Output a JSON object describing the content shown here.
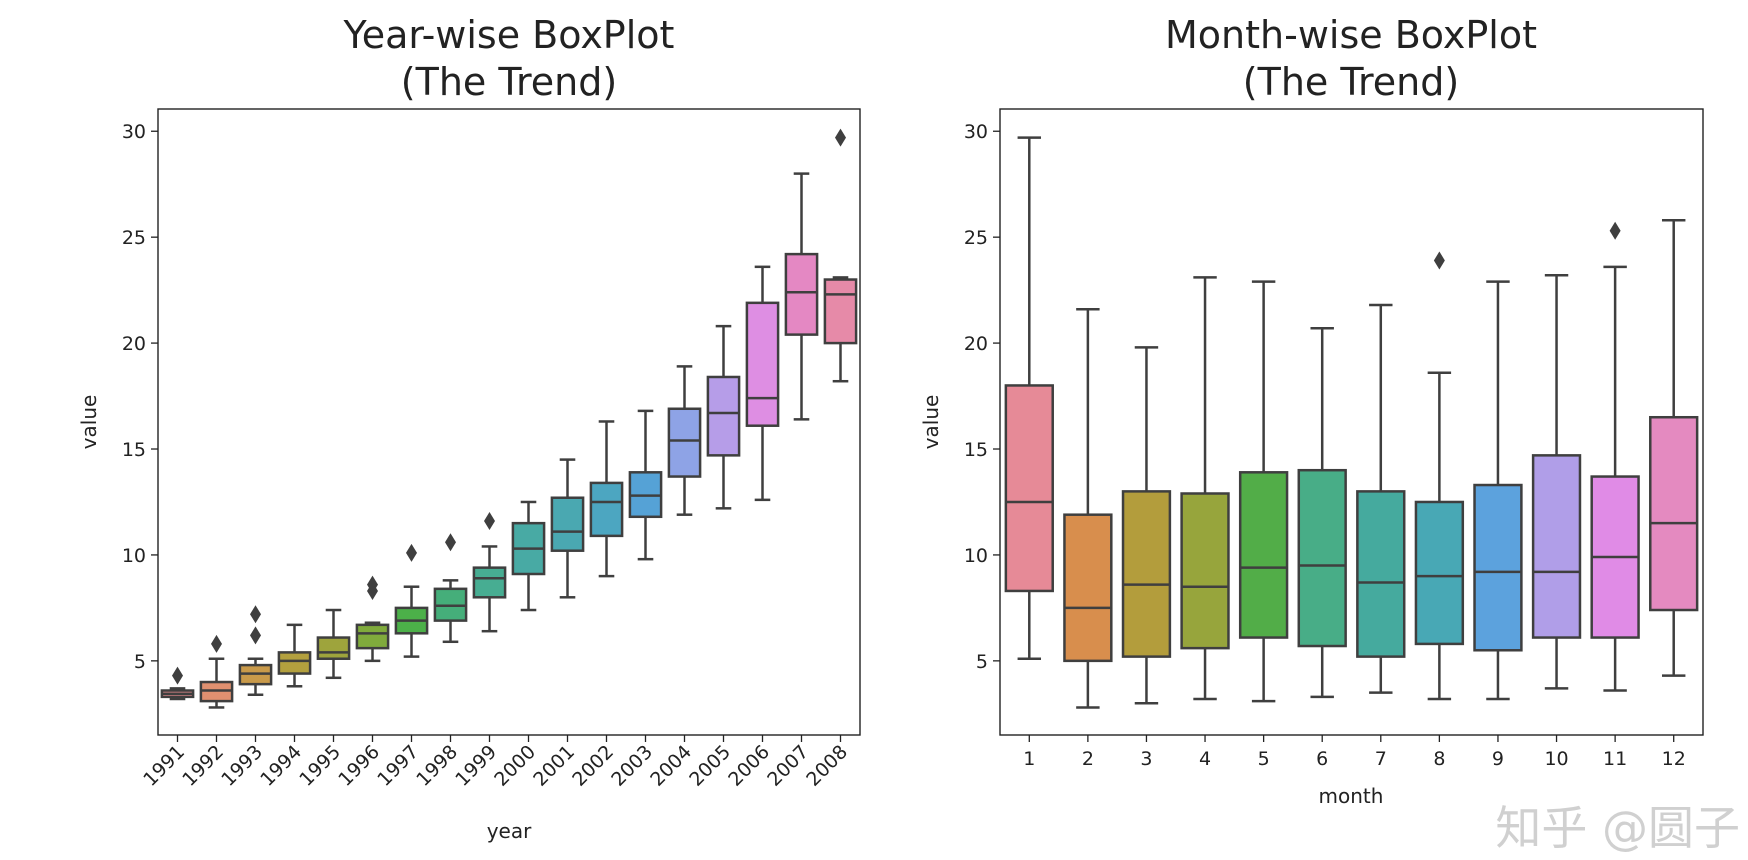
{
  "chart_data": [
    {
      "type": "box",
      "title_line1": "Year-wise BoxPlot",
      "title_line2": "(The Trend)",
      "xlabel": "year",
      "ylabel": "value",
      "ylim": [
        1.5,
        31.05
      ],
      "yticks": [
        5,
        10,
        15,
        20,
        25,
        30
      ],
      "categories": [
        "1991",
        "1992",
        "1993",
        "1994",
        "1995",
        "1996",
        "1997",
        "1998",
        "1999",
        "2000",
        "2001",
        "2002",
        "2003",
        "2004",
        "2005",
        "2006",
        "2007",
        "2008"
      ],
      "boxes": [
        {
          "low": 3.2,
          "q1": 3.3,
          "median": 3.45,
          "q3": 3.6,
          "high": 3.7,
          "outliers": [
            4.3
          ]
        },
        {
          "low": 2.8,
          "q1": 3.1,
          "median": 3.6,
          "q3": 4.0,
          "high": 5.1,
          "outliers": [
            5.8
          ]
        },
        {
          "low": 3.4,
          "q1": 3.9,
          "median": 4.4,
          "q3": 4.8,
          "high": 5.1,
          "outliers": [
            6.2,
            7.2
          ]
        },
        {
          "low": 3.8,
          "q1": 4.4,
          "median": 5.0,
          "q3": 5.4,
          "high": 6.7,
          "outliers": []
        },
        {
          "low": 4.2,
          "q1": 5.1,
          "median": 5.4,
          "q3": 6.1,
          "high": 7.4,
          "outliers": []
        },
        {
          "low": 5.0,
          "q1": 5.6,
          "median": 6.3,
          "q3": 6.7,
          "high": 6.8,
          "outliers": [
            8.3,
            8.6
          ]
        },
        {
          "low": 5.2,
          "q1": 6.3,
          "median": 6.9,
          "q3": 7.5,
          "high": 8.5,
          "outliers": [
            10.1
          ]
        },
        {
          "low": 5.9,
          "q1": 6.9,
          "median": 7.6,
          "q3": 8.4,
          "high": 8.8,
          "outliers": [
            10.6
          ]
        },
        {
          "low": 6.4,
          "q1": 8.0,
          "median": 8.9,
          "q3": 9.4,
          "high": 10.4,
          "outliers": [
            11.6
          ]
        },
        {
          "low": 7.4,
          "q1": 9.1,
          "median": 10.3,
          "q3": 11.5,
          "high": 12.5,
          "outliers": []
        },
        {
          "low": 8.0,
          "q1": 10.2,
          "median": 11.1,
          "q3": 12.7,
          "high": 14.5,
          "outliers": []
        },
        {
          "low": 9.0,
          "q1": 10.9,
          "median": 12.5,
          "q3": 13.4,
          "high": 16.3,
          "outliers": []
        },
        {
          "low": 9.8,
          "q1": 11.8,
          "median": 12.8,
          "q3": 13.9,
          "high": 16.8,
          "outliers": []
        },
        {
          "low": 11.9,
          "q1": 13.7,
          "median": 15.4,
          "q3": 16.9,
          "high": 18.9,
          "outliers": []
        },
        {
          "low": 12.2,
          "q1": 14.7,
          "median": 16.7,
          "q3": 18.4,
          "high": 20.8,
          "outliers": []
        },
        {
          "low": 12.6,
          "q1": 16.1,
          "median": 17.4,
          "q3": 21.9,
          "high": 23.6,
          "outliers": []
        },
        {
          "low": 16.4,
          "q1": 20.4,
          "median": 22.4,
          "q3": 24.2,
          "high": 28.0,
          "outliers": []
        },
        {
          "low": 18.2,
          "q1": 20.0,
          "median": 22.3,
          "q3": 23.0,
          "high": 23.1,
          "outliers": [
            29.7
          ]
        }
      ],
      "colors": [
        "#e58b8e",
        "#e09070",
        "#c99a4a",
        "#b3a03e",
        "#9ea43c",
        "#80ab3c",
        "#4cb049",
        "#45ae7a",
        "#47ad92",
        "#48aaa4",
        "#4aa8b1",
        "#4ca6c1",
        "#55a2d6",
        "#8ea3e6",
        "#b69de8",
        "#de8ee3",
        "#e488c3",
        "#e68aa8"
      ]
    },
    {
      "type": "box",
      "title_line1": "Month-wise BoxPlot",
      "title_line2": "(The Trend)",
      "xlabel": "month",
      "ylabel": "value",
      "ylim": [
        1.5,
        31.05
      ],
      "yticks": [
        5,
        10,
        15,
        20,
        25,
        30
      ],
      "categories": [
        "1",
        "2",
        "3",
        "4",
        "5",
        "6",
        "7",
        "8",
        "9",
        "10",
        "11",
        "12"
      ],
      "boxes": [
        {
          "low": 5.1,
          "q1": 8.3,
          "median": 12.5,
          "q3": 18.0,
          "high": 29.7,
          "outliers": []
        },
        {
          "low": 2.8,
          "q1": 5.0,
          "median": 7.5,
          "q3": 11.9,
          "high": 21.6,
          "outliers": []
        },
        {
          "low": 3.0,
          "q1": 5.2,
          "median": 8.6,
          "q3": 13.0,
          "high": 19.8,
          "outliers": []
        },
        {
          "low": 3.2,
          "q1": 5.6,
          "median": 8.5,
          "q3": 12.9,
          "high": 23.1,
          "outliers": []
        },
        {
          "low": 3.1,
          "q1": 6.1,
          "median": 9.4,
          "q3": 13.9,
          "high": 22.9,
          "outliers": []
        },
        {
          "low": 3.3,
          "q1": 5.7,
          "median": 9.5,
          "q3": 14.0,
          "high": 20.7,
          "outliers": []
        },
        {
          "low": 3.5,
          "q1": 5.2,
          "median": 8.7,
          "q3": 13.0,
          "high": 21.8,
          "outliers": []
        },
        {
          "low": 3.2,
          "q1": 5.8,
          "median": 9.0,
          "q3": 12.5,
          "high": 18.6,
          "outliers": [
            23.9
          ]
        },
        {
          "low": 3.2,
          "q1": 5.5,
          "median": 9.2,
          "q3": 13.3,
          "high": 22.9,
          "outliers": []
        },
        {
          "low": 3.7,
          "q1": 6.1,
          "median": 9.2,
          "q3": 14.7,
          "high": 23.2,
          "outliers": []
        },
        {
          "low": 3.6,
          "q1": 6.1,
          "median": 9.9,
          "q3": 13.7,
          "high": 23.6,
          "outliers": [
            25.3
          ]
        },
        {
          "low": 4.3,
          "q1": 7.4,
          "median": 11.5,
          "q3": 16.5,
          "high": 25.8,
          "outliers": []
        }
      ],
      "colors": [
        "#e68a97",
        "#d88e4d",
        "#b39d3c",
        "#97a53c",
        "#52ad48",
        "#48ad87",
        "#45aa9e",
        "#48a8b5",
        "#5ca2dd",
        "#b09ee8",
        "#e08be6",
        "#e48ac0"
      ]
    }
  ],
  "watermark": "知乎 @圆子"
}
